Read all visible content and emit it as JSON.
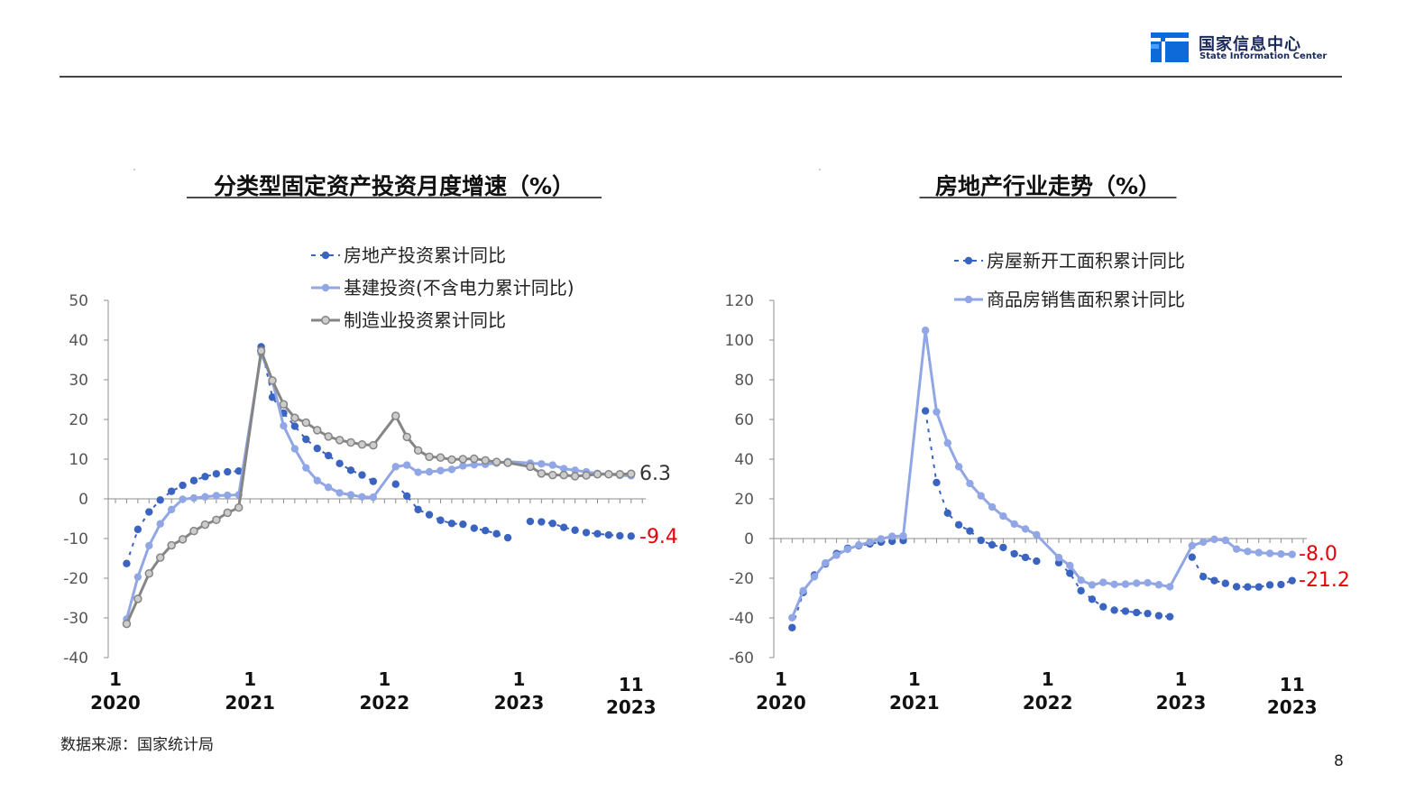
{
  "header": {
    "logo_cn": "国家信息中心",
    "logo_en": "State Information Center",
    "logo_color": "#0d6ad8"
  },
  "footer": {
    "source": "数据来源：国家统计局",
    "page_number": "8"
  },
  "colors": {
    "dark_blue": "#3a64c0",
    "light_blue": "#91a7e5",
    "gray": "#858585",
    "gray_marker_fill": "#cccccc",
    "axis": "#8c8c8c",
    "negative_label": "#e8000b",
    "positive_label": "#333333"
  },
  "chart_data": [
    {
      "type": "line",
      "title": "分类型固定资产投资月度增速（%）",
      "ylim": [
        -40,
        50
      ],
      "yticks": [
        "50",
        "40",
        "30",
        "20",
        "10",
        "0",
        "-10",
        "-20",
        "-30",
        "-40"
      ],
      "ytick_values": [
        50,
        40,
        30,
        20,
        10,
        0,
        -10,
        -20,
        -30,
        -40
      ],
      "x_count": 48,
      "xticks": [
        {
          "index": 0,
          "month": "1",
          "year": "2020"
        },
        {
          "index": 12,
          "month": "1",
          "year": "2021"
        },
        {
          "index": 24,
          "month": "1",
          "year": "2022"
        },
        {
          "index": 36,
          "month": "1",
          "year": "2023"
        },
        {
          "index": 46,
          "month": "11",
          "year": "2023"
        }
      ],
      "legend": {
        "position": "top-center"
      },
      "series": [
        {
          "name": "房地产投资累计同比",
          "style": "dotted",
          "color_key": "dark_blue",
          "points": [
            [
              1,
              -16.3
            ],
            [
              2,
              -7.7
            ],
            [
              3,
              -3.3
            ],
            [
              4,
              -0.3
            ],
            [
              5,
              1.9
            ],
            [
              6,
              3.4
            ],
            [
              7,
              4.6
            ],
            [
              8,
              5.6
            ],
            [
              9,
              6.3
            ],
            [
              10,
              6.8
            ],
            [
              11,
              7.0
            ],
            [
              13,
              38.3
            ],
            [
              14,
              25.6
            ],
            [
              15,
              21.6
            ],
            [
              16,
              18.3
            ],
            [
              17,
              15.0
            ],
            [
              18,
              12.7
            ],
            [
              19,
              10.9
            ],
            [
              20,
              8.9
            ],
            [
              21,
              7.2
            ],
            [
              22,
              6.0
            ],
            [
              23,
              4.4
            ],
            [
              25,
              3.7
            ],
            [
              26,
              0.7
            ],
            [
              27,
              -2.7
            ],
            [
              28,
              -4.0
            ],
            [
              29,
              -5.4
            ],
            [
              30,
              -6.2
            ],
            [
              31,
              -6.4
            ],
            [
              32,
              -7.4
            ],
            [
              33,
              -8.0
            ],
            [
              34,
              -8.8
            ],
            [
              35,
              -9.8
            ],
            [
              37,
              -5.7
            ],
            [
              38,
              -5.8
            ],
            [
              39,
              -6.2
            ],
            [
              40,
              -7.2
            ],
            [
              41,
              -7.9
            ],
            [
              42,
              -8.5
            ],
            [
              43,
              -8.8
            ],
            [
              44,
              -9.1
            ],
            [
              45,
              -9.3
            ],
            [
              46,
              -9.4
            ]
          ],
          "end_label": "-9.4"
        },
        {
          "name": "基建投资(不含电力累计同比)",
          "style": "solid",
          "color_key": "light_blue",
          "points": [
            [
              1,
              -30.3
            ],
            [
              2,
              -19.7
            ],
            [
              3,
              -11.8
            ],
            [
              4,
              -6.3
            ],
            [
              5,
              -2.7
            ],
            [
              6,
              -0.1
            ],
            [
              7,
              0.2
            ],
            [
              8,
              0.5
            ],
            [
              9,
              0.8
            ],
            [
              10,
              0.9
            ],
            [
              11,
              1.0
            ],
            [
              13,
              36.6
            ],
            [
              14,
              29.7
            ],
            [
              15,
              18.4
            ],
            [
              16,
              12.6
            ],
            [
              17,
              7.8
            ],
            [
              18,
              4.6
            ],
            [
              19,
              2.9
            ],
            [
              20,
              1.5
            ],
            [
              21,
              1.0
            ],
            [
              22,
              0.5
            ],
            [
              23,
              0.4
            ],
            [
              25,
              8.1
            ],
            [
              26,
              8.5
            ],
            [
              27,
              6.7
            ],
            [
              28,
              6.8
            ],
            [
              29,
              7.1
            ],
            [
              30,
              7.4
            ],
            [
              31,
              8.3
            ],
            [
              32,
              8.6
            ],
            [
              33,
              8.7
            ],
            [
              34,
              9.0
            ],
            [
              35,
              9.4
            ],
            [
              37,
              9.0
            ],
            [
              38,
              8.8
            ],
            [
              39,
              8.5
            ],
            [
              40,
              7.6
            ],
            [
              41,
              7.2
            ],
            [
              42,
              6.8
            ],
            [
              43,
              6.4
            ],
            [
              44,
              6.2
            ],
            [
              45,
              5.9
            ],
            [
              46,
              5.8
            ]
          ]
        },
        {
          "name": "制造业投资累计同比",
          "style": "solid",
          "color_key": "gray",
          "points": [
            [
              1,
              -31.5
            ],
            [
              2,
              -25.2
            ],
            [
              3,
              -18.8
            ],
            [
              4,
              -14.8
            ],
            [
              5,
              -11.7
            ],
            [
              6,
              -10.2
            ],
            [
              7,
              -8.1
            ],
            [
              8,
              -6.5
            ],
            [
              9,
              -5.3
            ],
            [
              10,
              -3.5
            ],
            [
              11,
              -2.2
            ],
            [
              13,
              37.3
            ],
            [
              14,
              29.8
            ],
            [
              15,
              23.8
            ],
            [
              16,
              20.4
            ],
            [
              17,
              19.2
            ],
            [
              18,
              17.3
            ],
            [
              19,
              15.7
            ],
            [
              20,
              14.8
            ],
            [
              21,
              14.2
            ],
            [
              22,
              13.7
            ],
            [
              23,
              13.5
            ],
            [
              25,
              20.9
            ],
            [
              26,
              15.6
            ],
            [
              27,
              12.2
            ],
            [
              28,
              10.6
            ],
            [
              29,
              10.4
            ],
            [
              30,
              9.9
            ],
            [
              31,
              10.0
            ],
            [
              32,
              10.1
            ],
            [
              33,
              9.7
            ],
            [
              34,
              9.3
            ],
            [
              35,
              9.1
            ],
            [
              37,
              8.1
            ],
            [
              38,
              6.4
            ],
            [
              39,
              6.0
            ],
            [
              40,
              6.0
            ],
            [
              41,
              5.7
            ],
            [
              42,
              5.9
            ],
            [
              43,
              6.2
            ],
            [
              44,
              6.2
            ],
            [
              45,
              6.2
            ],
            [
              46,
              6.3
            ]
          ],
          "end_label": "6.3"
        }
      ]
    },
    {
      "type": "line",
      "title": "房地产行业走势（%）",
      "ylim": [
        -60,
        120
      ],
      "yticks": [
        "120",
        "100",
        "80",
        "60",
        "40",
        "20",
        "0",
        "-20",
        "-40",
        "-60"
      ],
      "ytick_values": [
        120,
        100,
        80,
        60,
        40,
        20,
        0,
        -20,
        -40,
        -60
      ],
      "x_count": 48,
      "xticks": [
        {
          "index": 0,
          "month": "1",
          "year": "2020"
        },
        {
          "index": 12,
          "month": "1",
          "year": "2021"
        },
        {
          "index": 24,
          "month": "1",
          "year": "2022"
        },
        {
          "index": 36,
          "month": "1",
          "year": "2023"
        },
        {
          "index": 46,
          "month": "11",
          "year": "2023"
        }
      ],
      "legend": {
        "position": "top-center"
      },
      "series": [
        {
          "name": "房屋新开工面积累计同比",
          "style": "dotted",
          "color_key": "dark_blue",
          "points": [
            [
              1,
              -44.9
            ],
            [
              2,
              -27.2
            ],
            [
              3,
              -18.4
            ],
            [
              4,
              -12.8
            ],
            [
              5,
              -7.6
            ],
            [
              6,
              -4.9
            ],
            [
              7,
              -3.6
            ],
            [
              8,
              -2.7
            ],
            [
              9,
              -1.8
            ],
            [
              10,
              -1.4
            ],
            [
              11,
              -1.0
            ],
            [
              13,
              64.3
            ],
            [
              14,
              28.2
            ],
            [
              15,
              12.8
            ],
            [
              16,
              6.9
            ],
            [
              17,
              3.8
            ],
            [
              18,
              -0.9
            ],
            [
              19,
              -3.2
            ],
            [
              20,
              -4.5
            ],
            [
              21,
              -7.7
            ],
            [
              22,
              -9.5
            ],
            [
              23,
              -11.4
            ],
            [
              25,
              -12.2
            ],
            [
              26,
              -17.5
            ],
            [
              27,
              -26.3
            ],
            [
              28,
              -30.6
            ],
            [
              29,
              -34.4
            ],
            [
              30,
              -36.1
            ],
            [
              31,
              -36.6
            ],
            [
              32,
              -37.3
            ],
            [
              33,
              -37.8
            ],
            [
              34,
              -38.9
            ],
            [
              35,
              -39.4
            ],
            [
              37,
              -9.4
            ],
            [
              38,
              -19.2
            ],
            [
              39,
              -21.2
            ],
            [
              40,
              -22.6
            ],
            [
              41,
              -24.3
            ],
            [
              42,
              -24.4
            ],
            [
              43,
              -24.4
            ],
            [
              44,
              -23.4
            ],
            [
              45,
              -23.2
            ],
            [
              46,
              -21.2
            ]
          ],
          "end_label": "-21.2"
        },
        {
          "name": "商品房销售面积累计同比",
          "style": "solid",
          "color_key": "light_blue",
          "points": [
            [
              1,
              -39.9
            ],
            [
              2,
              -26.3
            ],
            [
              3,
              -19.3
            ],
            [
              4,
              -12.3
            ],
            [
              5,
              -8.4
            ],
            [
              6,
              -5.4
            ],
            [
              7,
              -3.3
            ],
            [
              8,
              -1.8
            ],
            [
              9,
              -0.2
            ],
            [
              10,
              1.1
            ],
            [
              11,
              1.3
            ],
            [
              13,
              104.9
            ],
            [
              14,
              63.8
            ],
            [
              15,
              48.1
            ],
            [
              16,
              36.2
            ],
            [
              17,
              27.7
            ],
            [
              18,
              21.5
            ],
            [
              19,
              15.9
            ],
            [
              20,
              11.3
            ],
            [
              21,
              7.3
            ],
            [
              22,
              4.8
            ],
            [
              23,
              1.9
            ],
            [
              25,
              -9.6
            ],
            [
              26,
              -13.6
            ],
            [
              27,
              -21.0
            ],
            [
              28,
              -23.4
            ],
            [
              29,
              -22.1
            ],
            [
              30,
              -23.1
            ],
            [
              31,
              -23.0
            ],
            [
              32,
              -22.5
            ],
            [
              33,
              -22.3
            ],
            [
              34,
              -23.3
            ],
            [
              35,
              -24.3
            ],
            [
              37,
              -3.6
            ],
            [
              38,
              -1.8
            ],
            [
              39,
              -0.4
            ],
            [
              40,
              -0.9
            ],
            [
              41,
              -5.3
            ],
            [
              42,
              -6.5
            ],
            [
              43,
              -7.1
            ],
            [
              44,
              -7.5
            ],
            [
              45,
              -7.8
            ],
            [
              46,
              -8.0
            ]
          ],
          "end_label": "-8.0"
        }
      ]
    }
  ]
}
